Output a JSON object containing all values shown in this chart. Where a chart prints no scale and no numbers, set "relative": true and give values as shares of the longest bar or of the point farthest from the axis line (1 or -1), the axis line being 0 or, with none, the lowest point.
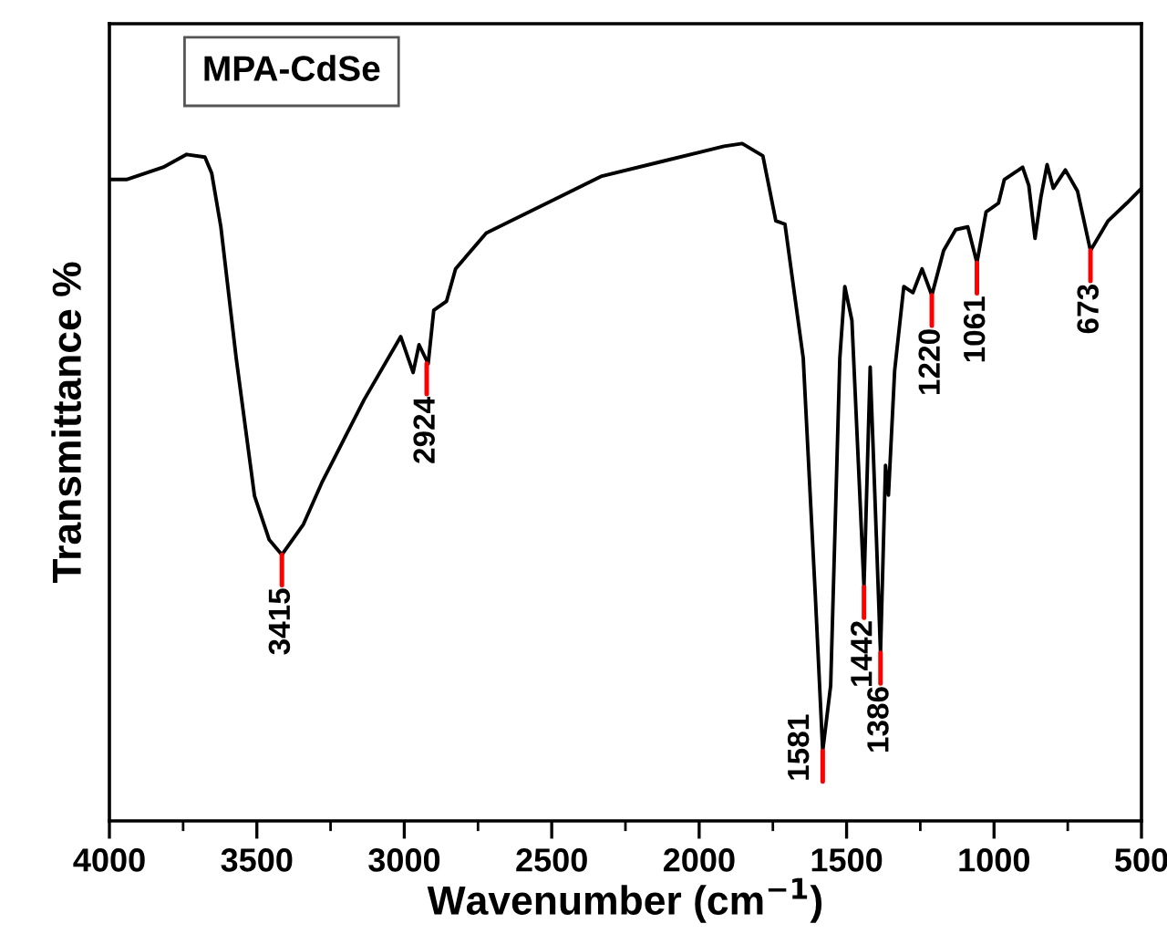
{
  "chart_data": {
    "type": "line",
    "title": "MPA-CdSe",
    "xlabel": "Wavenumber (cm$^{−1}$)",
    "ylabel": "Transmittance %",
    "relative": true,
    "xlim": [
      4000,
      500
    ],
    "xticks": [
      4000,
      {
        "value": 3750,
        "label": null
      },
      3500,
      {
        "value": 3250,
        "label": null
      },
      3000,
      {
        "value": 2750,
        "label": null
      },
      2500,
      {
        "value": 2250,
        "label": null
      },
      2000,
      {
        "value": 1750,
        "label": null
      },
      1500,
      {
        "value": 1250,
        "label": null
      },
      1000,
      {
        "value": 750,
        "label": null
      },
      500
    ],
    "grid": false,
    "legend": false,
    "x": [
      4000,
      3942,
      3818,
      3738,
      3676,
      3653,
      3622,
      3570,
      3508,
      3458,
      3415,
      3342,
      3280,
      3136,
      3012,
      2970,
      2950,
      2919,
      2900,
      2857,
      2826,
      2722,
      2474,
      2330,
      2123,
      1916,
      1854,
      1784,
      1740,
      1709,
      1647,
      1606,
      1581,
      1554,
      1523,
      1506,
      1482,
      1441,
      1420,
      1399,
      1385,
      1368,
      1358,
      1337,
      1306,
      1275,
      1244,
      1211,
      1171,
      1130,
      1089,
      1058,
      1027,
      985,
      965,
      903,
      882,
      861,
      841,
      820,
      799,
      758,
      717,
      673,
      613,
      550,
      500
    ],
    "series": [
      {
        "color": "#000000",
        "values": [
          0.947,
          0.947,
          0.965,
          0.984,
          0.98,
          0.956,
          0.877,
          0.683,
          0.48,
          0.415,
          0.393,
          0.438,
          0.499,
          0.622,
          0.715,
          0.662,
          0.703,
          0.675,
          0.754,
          0.767,
          0.815,
          0.868,
          0.921,
          0.952,
          0.974,
          0.996,
          1.0,
          0.982,
          0.886,
          0.881,
          0.683,
          0.332,
          0.103,
          0.2,
          0.683,
          0.789,
          0.739,
          0.345,
          0.67,
          0.419,
          0.248,
          0.525,
          0.481,
          0.665,
          0.789,
          0.78,
          0.815,
          0.776,
          0.842,
          0.873,
          0.877,
          0.824,
          0.899,
          0.912,
          0.947,
          0.965,
          0.938,
          0.86,
          0.921,
          0.969,
          0.934,
          0.961,
          0.93,
          0.842,
          0.886,
          0.912,
          0.934
        ]
      }
    ],
    "annotations": [
      {
        "text": "3415",
        "x": 3415,
        "y": 0.393
      },
      {
        "text": "2924",
        "x": 2924,
        "y": 0.675
      },
      {
        "text": "1581",
        "x": 1581,
        "y": 0.103
      },
      {
        "text": "1442",
        "x": 1441,
        "y": 0.345
      },
      {
        "text": "1386",
        "x": 1385,
        "y": 0.248
      },
      {
        "text": "1220",
        "x": 1211,
        "y": 0.776
      },
      {
        "text": "1061",
        "x": 1058,
        "y": 0.824
      },
      {
        "text": "673",
        "x": 673,
        "y": 0.842
      }
    ]
  }
}
